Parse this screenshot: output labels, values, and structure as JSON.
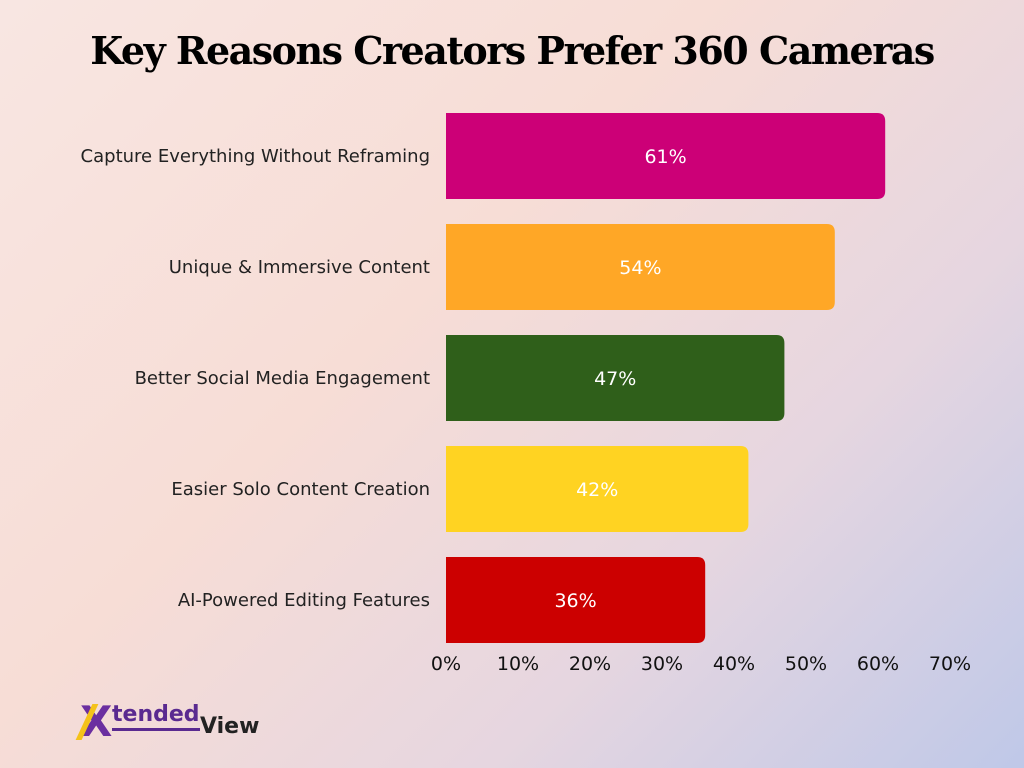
{
  "chart_data": {
    "type": "bar",
    "orientation": "horizontal",
    "title": "Key Reasons Creators Prefer 360 Cameras",
    "categories": [
      "Capture Everything Without Reframing",
      "Unique & Immersive Content",
      "Better Social Media Engagement",
      "Easier Solo Content Creation",
      "AI-Powered Editing Features"
    ],
    "values": [
      61,
      54,
      47,
      42,
      36
    ],
    "value_labels": [
      "61%",
      "54%",
      "47%",
      "42%",
      "36%"
    ],
    "colors": [
      "#cc0077",
      "#ffa726",
      "#2f5f1a",
      "#ffd322",
      "#cc0000"
    ],
    "xlim": [
      0,
      70
    ],
    "xticks": [
      0,
      10,
      20,
      30,
      40,
      50,
      60,
      70
    ],
    "xtick_labels": [
      "0%",
      "10%",
      "20%",
      "30%",
      "40%",
      "50%",
      "60%",
      "70%"
    ],
    "xlabel": "",
    "ylabel": "",
    "grid": false,
    "legend": "none"
  },
  "brand": {
    "logo_mark": "X",
    "name_part1": "tended",
    "name_part2": "View"
  }
}
